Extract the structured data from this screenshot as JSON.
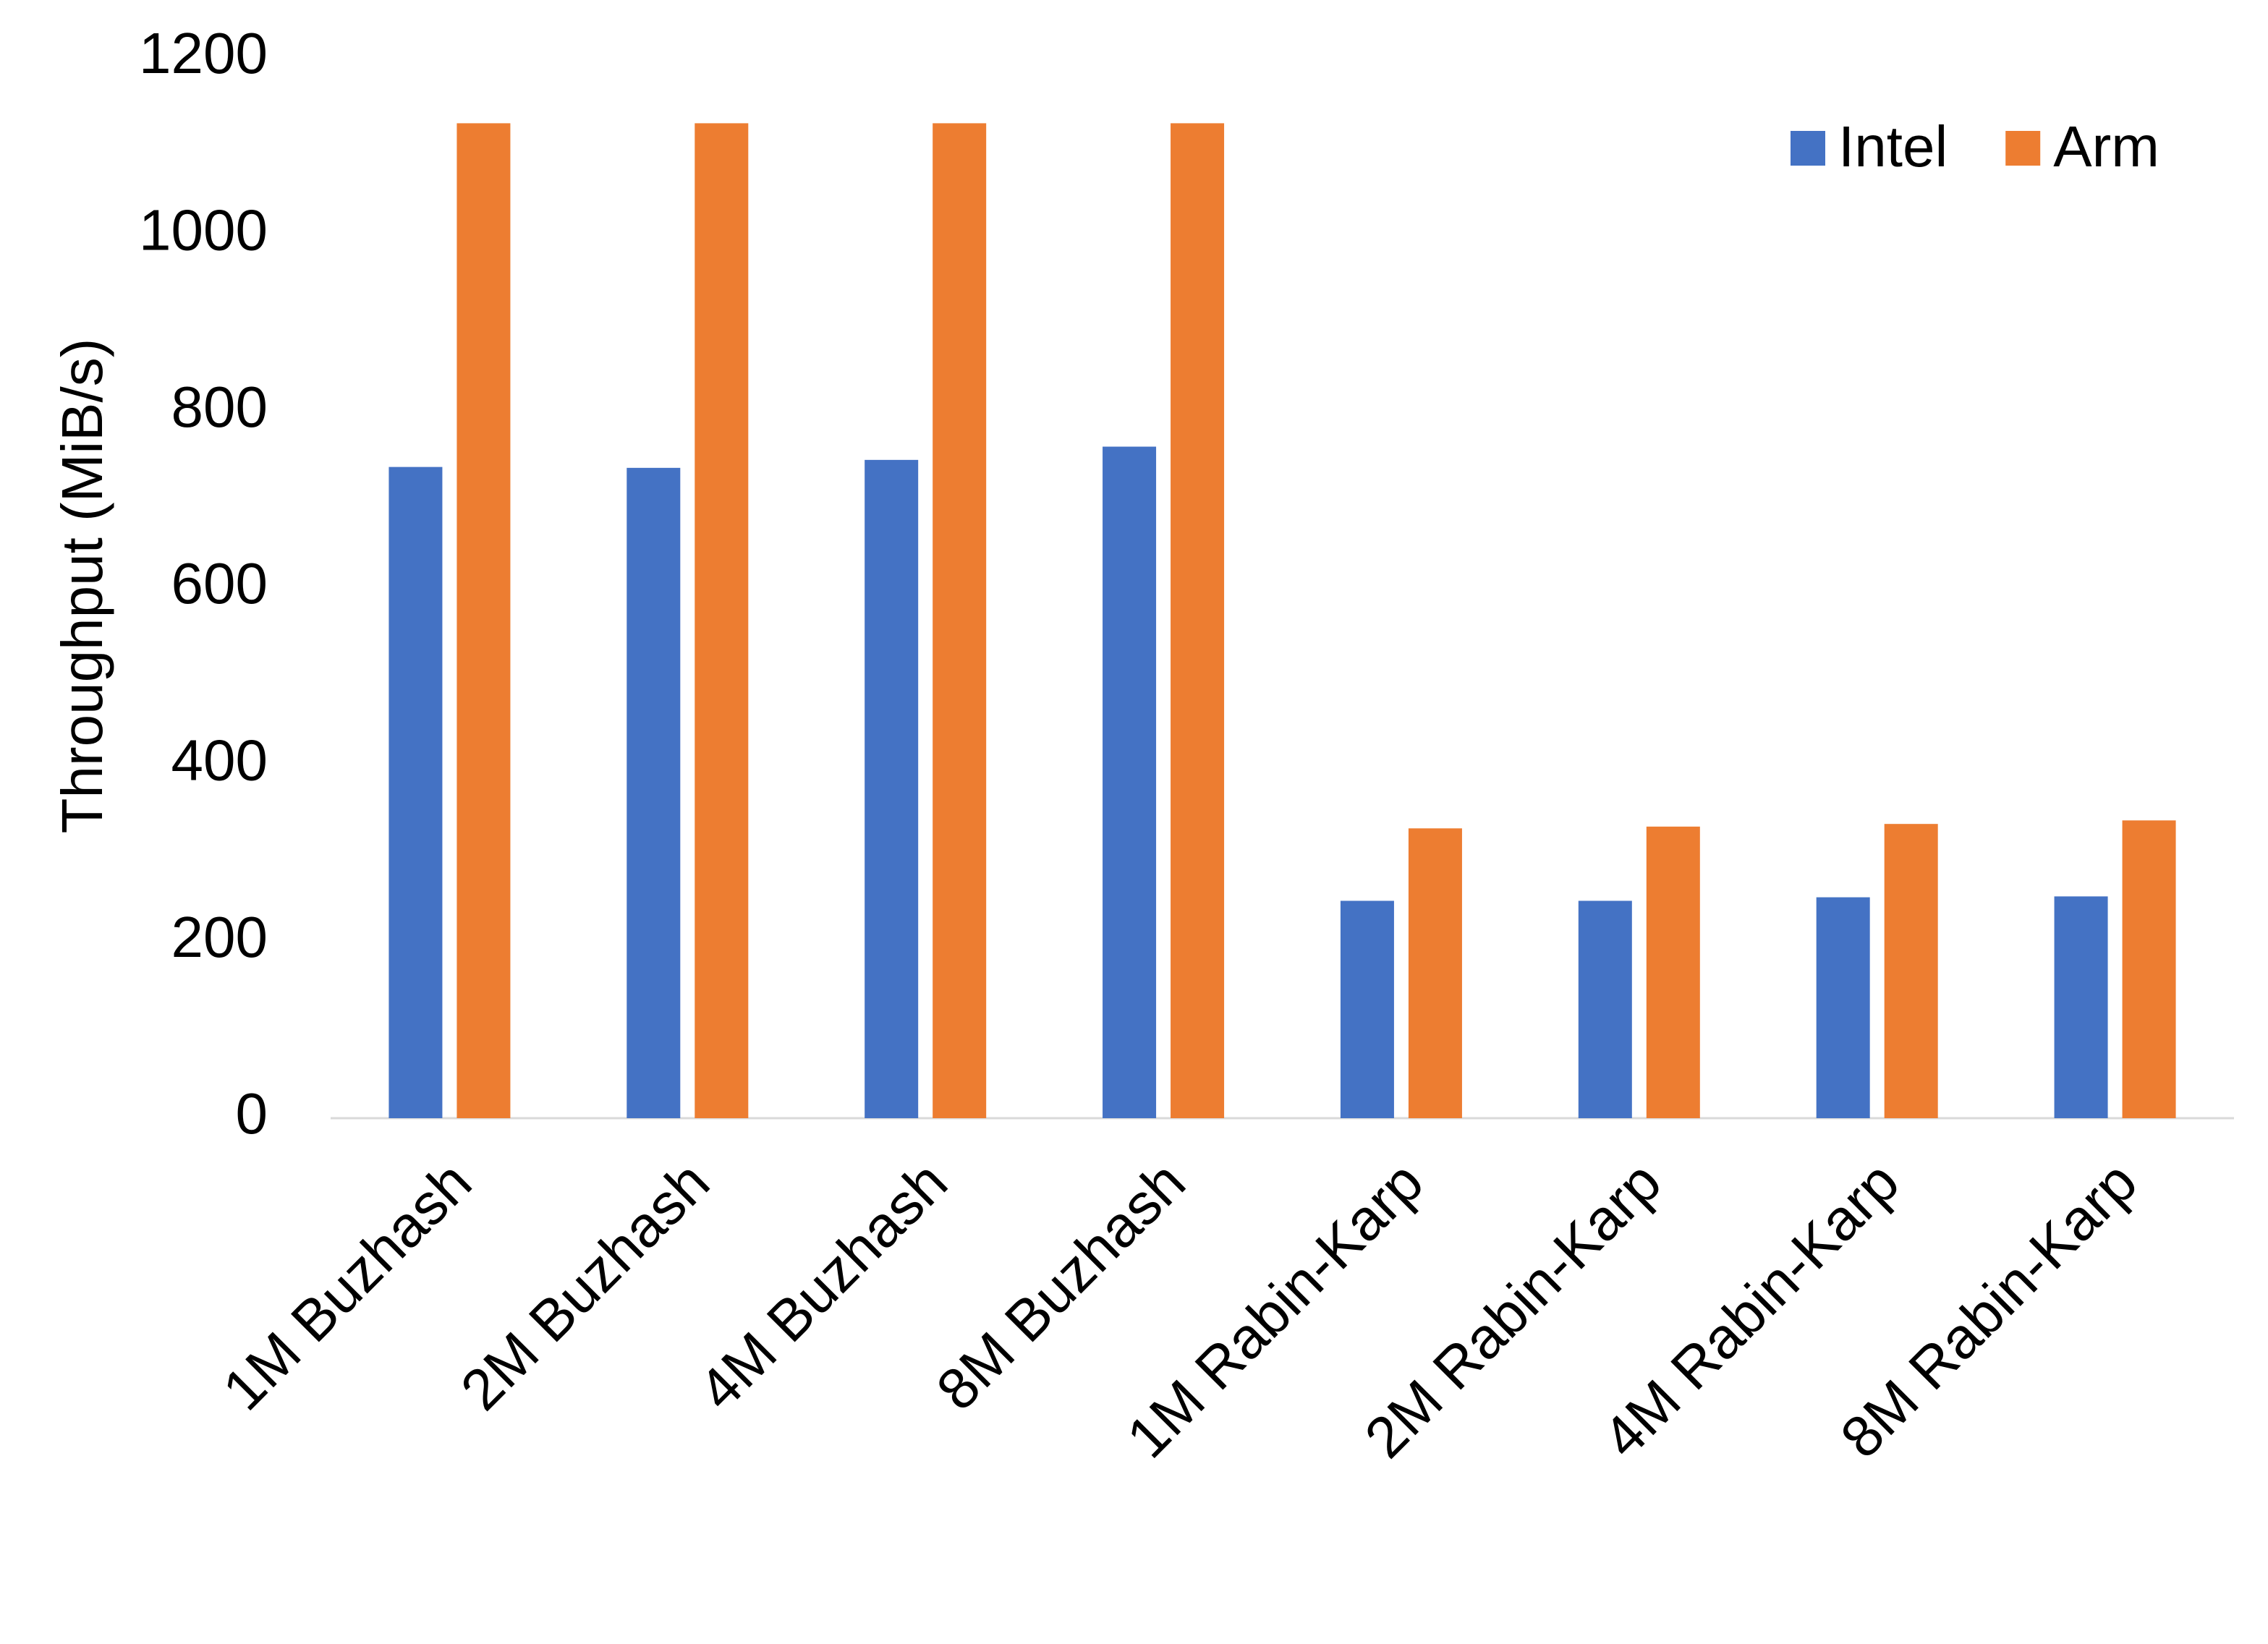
{
  "chart_data": {
    "type": "bar",
    "y_label": "Throughput (MiB/s)",
    "categories": [
      "1M Buzhash",
      "2M Buzhash",
      "4M Buzhash",
      "8M Buzhash",
      "1M Rabin-Karp",
      "2M Rabin-Karp",
      "4M Rabin-Karp",
      "8M Rabin-Karp"
    ],
    "series": [
      {
        "name": "Intel",
        "color": "#4472c4",
        "values": [
          737,
          736,
          745,
          760,
          246,
          246,
          250,
          251
        ]
      },
      {
        "name": "Arm",
        "color": "#ed7d31",
        "values": [
          1126,
          1126,
          1126,
          1126,
          328,
          330,
          333,
          337
        ]
      }
    ],
    "ylim": [
      0,
      1200
    ],
    "yticks": [
      0,
      200,
      400,
      600,
      800,
      1000,
      1200
    ],
    "grid": false,
    "legend": "top-right"
  }
}
